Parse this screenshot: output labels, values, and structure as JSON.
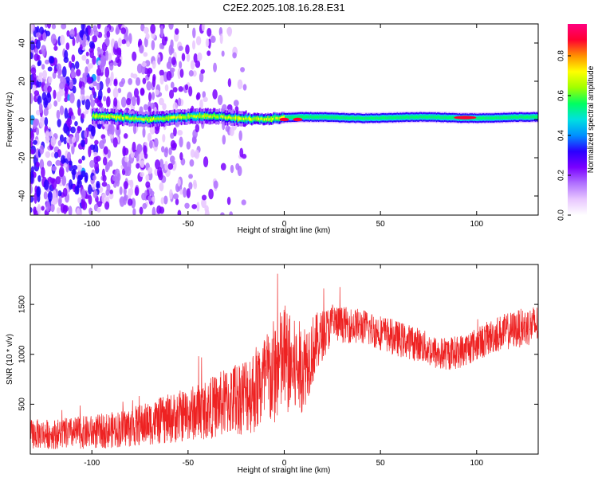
{
  "title": "C2E2.2025.108.16.28.E31",
  "chart_data": [
    {
      "type": "heatmap",
      "xlabel": "Height of straight line (km)",
      "ylabel": "Frequency (Hz)",
      "xlim": [
        -132,
        132
      ],
      "ylim": [
        -50,
        50
      ],
      "xticks": [
        -100,
        -50,
        0,
        50,
        100
      ],
      "xtick_labels": [
        "-100",
        "-50",
        "0",
        "50",
        "100"
      ],
      "yticks": [
        -40,
        -20,
        0,
        20,
        40
      ],
      "ytick_labels": [
        "-40",
        "-20",
        "0",
        "20",
        "40"
      ],
      "colorbar": {
        "label": "Normalized spectral amplitude",
        "range": [
          0,
          0.96
        ],
        "ticks": [
          0.0,
          0.2,
          0.4,
          0.6,
          0.8
        ],
        "tick_labels": [
          "0.0",
          "0.2",
          "0.4",
          "0.6",
          "0.8"
        ],
        "colors": [
          "#ffffff",
          "#e8c6ff",
          "#b070ff",
          "#7a00ff",
          "#2a00ff",
          "#0090ff",
          "#00e0e0",
          "#00ff60",
          "#a0ff00",
          "#ffff00",
          "#ff9000",
          "#ff0030",
          "#ff0080"
        ]
      },
      "band": {
        "center_freq_hz": 1,
        "x_start": -100,
        "x_end": 132,
        "hot_spots": [
          {
            "x": 0,
            "freq": 0
          },
          {
            "x": 7,
            "freq": 0
          },
          {
            "x": 94,
            "freq": 1
          }
        ]
      },
      "noise_region": {
        "x_start": -132,
        "x_end": -20,
        "dense_until": -95
      }
    },
    {
      "type": "line",
      "xlabel": "Height of straight line (km)",
      "ylabel": "SNR (10 * v/v)",
      "xlim": [
        -132,
        132
      ],
      "ylim": [
        0,
        1900
      ],
      "xticks": [
        -100,
        -50,
        0,
        50,
        100
      ],
      "xtick_labels": [
        "-100",
        "-50",
        "0",
        "50",
        "100"
      ],
      "yticks": [
        500,
        1000,
        1500
      ],
      "ytick_labels": [
        "500",
        "1000",
        "1500"
      ],
      "color": "#ee2222",
      "series": [
        {
          "x": [
            -132,
            -120,
            -110,
            -100,
            -90,
            -80,
            -70,
            -60,
            -50,
            -40,
            -30,
            -20,
            -15,
            -10,
            -5,
            0,
            5,
            10,
            15,
            20,
            25,
            30,
            40,
            50,
            60,
            70,
            80,
            90,
            100,
            110,
            120,
            132
          ],
          "y": [
            200,
            200,
            210,
            220,
            240,
            270,
            310,
            350,
            400,
            450,
            520,
            600,
            650,
            720,
            820,
            950,
            850,
            880,
            1050,
            1200,
            1300,
            1300,
            1280,
            1220,
            1150,
            1100,
            1000,
            1020,
            1100,
            1200,
            1250,
            1300
          ],
          "spread": [
            150,
            150,
            160,
            170,
            180,
            200,
            220,
            250,
            270,
            300,
            350,
            400,
            450,
            500,
            550,
            550,
            500,
            450,
            350,
            250,
            200,
            180,
            180,
            180,
            180,
            170,
            170,
            170,
            170,
            180,
            190,
            200
          ]
        }
      ]
    }
  ]
}
